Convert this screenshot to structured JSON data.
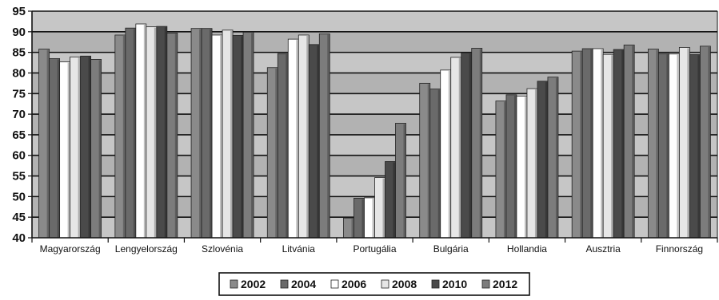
{
  "chart_data": {
    "type": "bar",
    "title": "",
    "xlabel": "",
    "ylabel": "",
    "ylim": [
      40,
      95
    ],
    "yticks": [
      40,
      45,
      50,
      55,
      60,
      65,
      70,
      75,
      80,
      85,
      90,
      95
    ],
    "grid": true,
    "legend_position": "bottom",
    "categories": [
      "Magyarország",
      "Lengyelország",
      "Szlovénia",
      "Litvánia",
      "Portugália",
      "Bulgária",
      "Hollandia",
      "Ausztria",
      "Finnország"
    ],
    "series": [
      {
        "name": "2002",
        "color": "#8a8a8a",
        "values": [
          85.8,
          89.2,
          90.8,
          81.3,
          44.8,
          77.5,
          73.2,
          85.3,
          85.8
        ]
      },
      {
        "name": "2004",
        "color": "#6a6a6a",
        "values": [
          83.5,
          90.9,
          90.8,
          84.7,
          49.6,
          76.1,
          74.7,
          85.9,
          84.7
        ]
      },
      {
        "name": "2006",
        "color": "#ffffff",
        "values": [
          82.7,
          91.9,
          89.2,
          88.2,
          49.7,
          80.7,
          74.4,
          85.9,
          84.6
        ]
      },
      {
        "name": "2008",
        "color": "#e6e6e6",
        "values": [
          83.9,
          91.2,
          90.4,
          89.2,
          54.6,
          83.8,
          76.2,
          84.5,
          86.2
        ]
      },
      {
        "name": "2010",
        "color": "#4a4a4a",
        "values": [
          84.1,
          91.3,
          89.1,
          86.9,
          58.5,
          84.9,
          78.0,
          85.7,
          84.5
        ]
      },
      {
        "name": "2012",
        "color": "#7c7c7c",
        "values": [
          83.3,
          89.7,
          89.9,
          89.5,
          67.8,
          86.0,
          79.0,
          86.8,
          86.5
        ]
      }
    ]
  }
}
